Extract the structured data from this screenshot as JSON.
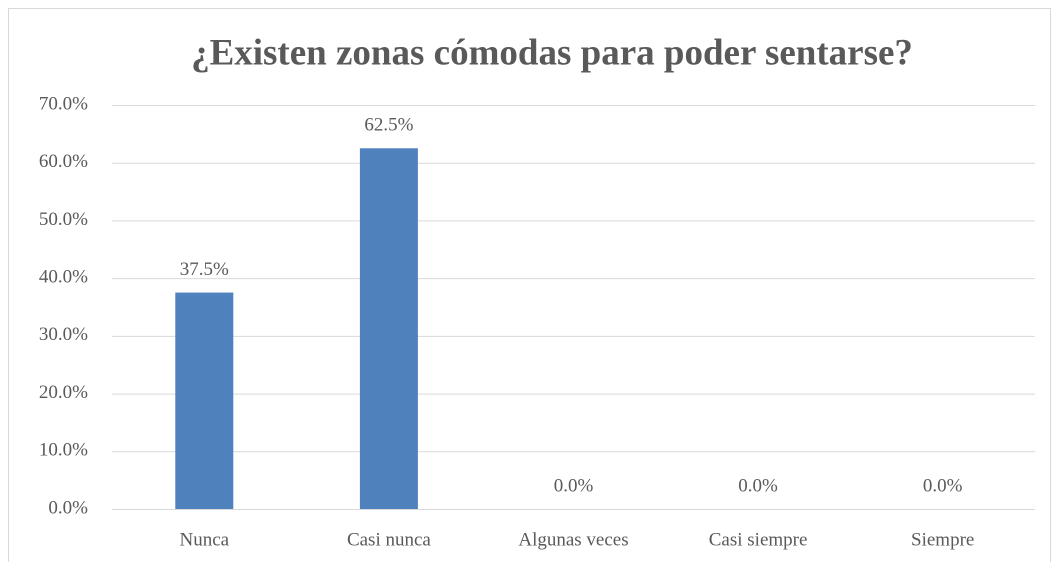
{
  "chart_data": {
    "type": "bar",
    "title": "¿Existen zonas cómodas para poder sentarse?",
    "categories": [
      "Nunca",
      "Casi nunca",
      "Algunas veces",
      "Casi siempre",
      "Siempre"
    ],
    "values": [
      37.5,
      62.5,
      0,
      0,
      0
    ],
    "value_labels": [
      "37.5%",
      "62.5%",
      "0.0%",
      "0.0%",
      "0.0%"
    ],
    "color": "#4f81bd",
    "ylim": [
      0,
      70
    ],
    "yticks": [
      {
        "value": 0,
        "label": "0.0%"
      },
      {
        "value": 10,
        "label": "10.0%"
      },
      {
        "value": 20,
        "label": "20.0%"
      },
      {
        "value": 30,
        "label": "30.0%"
      },
      {
        "value": 40,
        "label": "40.0%"
      },
      {
        "value": 50,
        "label": "50.0%"
      },
      {
        "value": 60,
        "label": "60.0%"
      },
      {
        "value": 70,
        "label": "70.0%"
      }
    ],
    "grid": true
  }
}
